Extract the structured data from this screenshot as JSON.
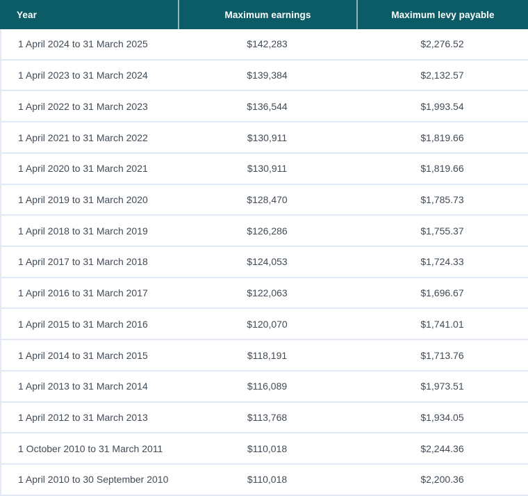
{
  "table": {
    "columns": [
      {
        "key": "year",
        "label": "Year"
      },
      {
        "key": "max_earnings",
        "label": "Maximum earnings"
      },
      {
        "key": "max_levy",
        "label": "Maximum levy payable"
      }
    ],
    "rows": [
      {
        "year": "1 April 2024 to 31 March 2025",
        "max_earnings": "$142,283",
        "max_levy": "$2,276.52"
      },
      {
        "year": "1 April 2023 to 31 March 2024",
        "max_earnings": "$139,384",
        "max_levy": "$2,132.57"
      },
      {
        "year": "1 April 2022 to 31 March 2023",
        "max_earnings": "$136,544",
        "max_levy": "$1,993.54"
      },
      {
        "year": "1 April 2021 to 31 March 2022",
        "max_earnings": "$130,911",
        "max_levy": "$1,819.66"
      },
      {
        "year": "1 April 2020 to 31 March 2021",
        "max_earnings": "$130,911",
        "max_levy": "$1,819.66"
      },
      {
        "year": "1 April 2019 to 31 March 2020",
        "max_earnings": "$128,470",
        "max_levy": "$1,785.73"
      },
      {
        "year": "1 April 2018 to 31 March 2019",
        "max_earnings": "$126,286",
        "max_levy": "$1,755.37"
      },
      {
        "year": "1 April 2017 to 31 March 2018",
        "max_earnings": "$124,053",
        "max_levy": "$1,724.33"
      },
      {
        "year": "1 April 2016 to 31 March 2017",
        "max_earnings": "$122,063",
        "max_levy": "$1,696.67"
      },
      {
        "year": "1 April 2015 to 31 March 2016",
        "max_earnings": "$120,070",
        "max_levy": "$1,741.01"
      },
      {
        "year": "1 April 2014 to 31 March 2015",
        "max_earnings": "$118,191",
        "max_levy": "$1,713.76"
      },
      {
        "year": "1 April 2013 to 31 March 2014",
        "max_earnings": "$116,089",
        "max_levy": "$1,973.51"
      },
      {
        "year": "1 April 2012 to 31 March 2013",
        "max_earnings": "$113,768",
        "max_levy": "$1,934.05"
      },
      {
        "year": "1 October 2010 to 31 March 2011",
        "max_earnings": "$110,018",
        "max_levy": "$2,244.36"
      },
      {
        "year": "1 April 2010 to 30 September 2010",
        "max_earnings": "$110,018",
        "max_levy": "$2,200.36"
      }
    ]
  },
  "colors": {
    "header_bg": "#0b5c66",
    "header_text": "#ffffff",
    "row_border": "#dfeaf6",
    "body_text": "#414b56"
  }
}
